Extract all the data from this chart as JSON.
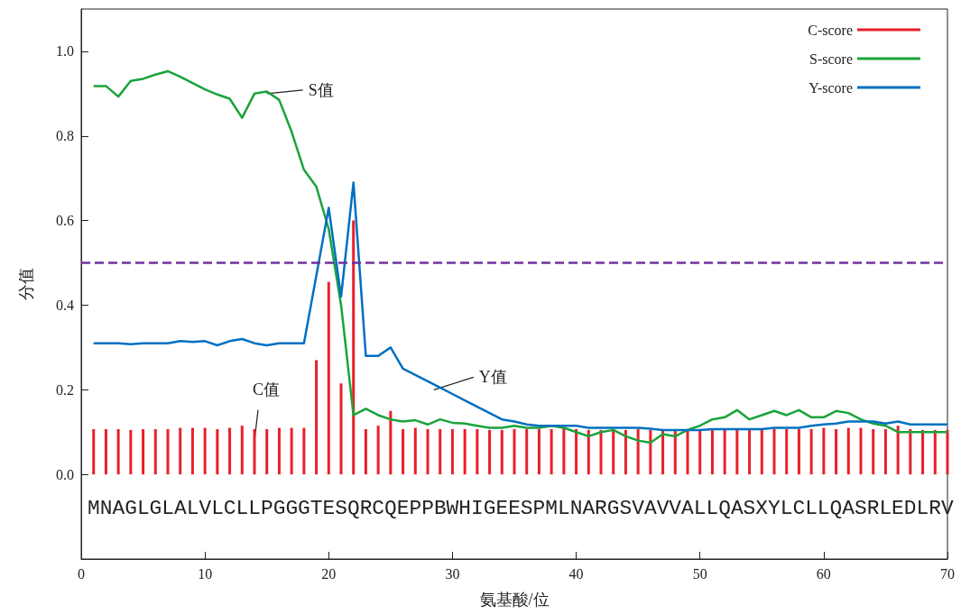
{
  "chart_data": {
    "type": "line",
    "xlabel": "氨基酸/位",
    "ylabel": "分值",
    "x": [
      1,
      2,
      3,
      4,
      5,
      6,
      7,
      8,
      9,
      10,
      11,
      12,
      13,
      14,
      15,
      16,
      17,
      18,
      19,
      20,
      21,
      22,
      23,
      24,
      25,
      26,
      27,
      28,
      29,
      30,
      31,
      32,
      33,
      34,
      35,
      36,
      37,
      38,
      39,
      40,
      41,
      42,
      43,
      44,
      45,
      46,
      47,
      48,
      49,
      50,
      51,
      52,
      53,
      54,
      55,
      56,
      57,
      58,
      59,
      60,
      61,
      62,
      63,
      64,
      65,
      66,
      67,
      68,
      69,
      70
    ],
    "series": [
      {
        "name": "C-score",
        "type": "bar",
        "color": "#e8202a",
        "values": [
          0.107,
          0.107,
          0.107,
          0.105,
          0.107,
          0.107,
          0.107,
          0.11,
          0.11,
          0.11,
          0.107,
          0.11,
          0.115,
          0.107,
          0.107,
          0.11,
          0.11,
          0.11,
          0.27,
          0.455,
          0.215,
          0.6,
          0.107,
          0.115,
          0.15,
          0.107,
          0.11,
          0.107,
          0.107,
          0.107,
          0.107,
          0.107,
          0.105,
          0.105,
          0.107,
          0.107,
          0.107,
          0.107,
          0.11,
          0.107,
          0.105,
          0.105,
          0.107,
          0.105,
          0.107,
          0.105,
          0.107,
          0.105,
          0.107,
          0.107,
          0.107,
          0.107,
          0.107,
          0.107,
          0.107,
          0.107,
          0.107,
          0.107,
          0.107,
          0.11,
          0.107,
          0.11,
          0.11,
          0.107,
          0.107,
          0.115,
          0.107,
          0.105,
          0.105,
          0.105
        ]
      },
      {
        "name": "S-score",
        "color": "#1aa33a",
        "values": [
          0.918,
          0.918,
          0.893,
          0.93,
          0.935,
          0.945,
          0.953,
          0.94,
          0.925,
          0.91,
          0.898,
          0.888,
          0.843,
          0.9,
          0.905,
          0.885,
          0.81,
          0.72,
          0.68,
          0.58,
          0.4,
          0.14,
          0.155,
          0.14,
          0.13,
          0.125,
          0.128,
          0.118,
          0.13,
          0.122,
          0.12,
          0.115,
          0.11,
          0.11,
          0.115,
          0.11,
          0.11,
          0.115,
          0.11,
          0.1,
          0.09,
          0.1,
          0.105,
          0.09,
          0.08,
          0.075,
          0.095,
          0.09,
          0.105,
          0.115,
          0.13,
          0.135,
          0.152,
          0.13,
          0.14,
          0.15,
          0.14,
          0.152,
          0.135,
          0.135,
          0.15,
          0.145,
          0.13,
          0.12,
          0.115,
          0.1,
          0.1,
          0.1,
          0.1,
          0.1
        ]
      },
      {
        "name": "Y-score",
        "color": "#0070c0",
        "values": [
          0.31,
          0.31,
          0.31,
          0.308,
          0.31,
          0.31,
          0.31,
          0.315,
          0.313,
          0.315,
          0.305,
          0.315,
          0.32,
          0.31,
          0.305,
          0.31,
          0.31,
          0.31,
          0.47,
          0.63,
          0.42,
          0.69,
          0.28,
          0.28,
          0.3,
          0.25,
          0.235,
          0.22,
          0.205,
          0.19,
          0.175,
          0.16,
          0.145,
          0.13,
          0.125,
          0.118,
          0.115,
          0.115,
          0.115,
          0.115,
          0.11,
          0.11,
          0.11,
          0.11,
          0.11,
          0.108,
          0.105,
          0.105,
          0.105,
          0.105,
          0.107,
          0.107,
          0.107,
          0.107,
          0.107,
          0.11,
          0.11,
          0.11,
          0.115,
          0.118,
          0.12,
          0.125,
          0.125,
          0.125,
          0.12,
          0.125,
          0.118,
          0.118,
          0.118,
          0.118
        ]
      }
    ],
    "xlim": [
      0,
      70
    ],
    "xticks": [
      0,
      10,
      20,
      30,
      40,
      50,
      60,
      70
    ],
    "ylim": [
      -0.2,
      1.1
    ],
    "yticks": [
      {
        "value": 0,
        "label": "0.0"
      },
      {
        "value": 0.2,
        "label": "0.2"
      },
      {
        "value": 0.4,
        "label": "0.4"
      },
      {
        "value": 0.6,
        "label": "0.6"
      },
      {
        "value": 0.8,
        "label": "0.8"
      },
      {
        "value": 1,
        "label": "1.0"
      }
    ],
    "ref_lines": [
      {
        "axis": "y",
        "value": 0.5,
        "label": null,
        "color": "#7030a0",
        "line_style": "dashed"
      }
    ],
    "annotations": [
      "MNAGLGLALVLCLLPGGGTESQRCQEPPBWHIGEESPMLNARGSVAVVALLQASXYLCLLQASRLEDLRV",
      {
        "text": "S值",
        "x": 15,
        "y": 0.9
      },
      {
        "text": "Y值",
        "x": 28.5,
        "y": 0.2
      },
      {
        "text": "C值",
        "x": 14,
        "y": 0.08
      }
    ],
    "legend": "top right",
    "grid": false,
    "marker": "none",
    "line_style": "solid"
  }
}
